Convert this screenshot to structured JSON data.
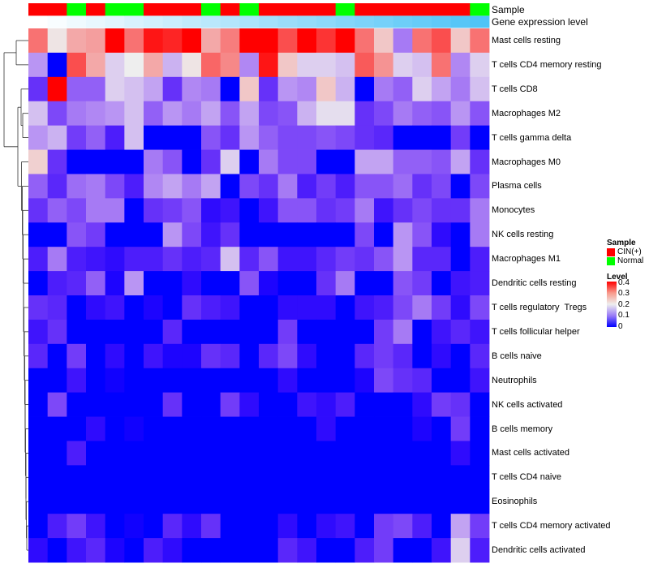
{
  "chart_data": {
    "type": "heatmap",
    "annotations": {
      "sample_label": "Sample",
      "gene_label": "Gene expression level",
      "sample": [
        "CIN(+)",
        "CIN(+)",
        "Normal",
        "CIN(+)",
        "Normal",
        "Normal",
        "CIN(+)",
        "CIN(+)",
        "CIN(+)",
        "Normal",
        "CIN(+)",
        "Normal",
        "CIN(+)",
        "CIN(+)",
        "CIN(+)",
        "CIN(+)",
        "Normal",
        "CIN(+)",
        "CIN(+)",
        "CIN(+)",
        "CIN(+)",
        "CIN(+)",
        "CIN(+)",
        "Normal"
      ],
      "gene_expression_level": [
        0,
        0.04,
        0.09,
        0.13,
        0.17,
        0.22,
        0.26,
        0.3,
        0.35,
        0.39,
        0.43,
        0.48,
        0.52,
        0.57,
        0.61,
        0.65,
        0.7,
        0.74,
        0.78,
        0.83,
        0.87,
        0.91,
        0.96,
        1
      ]
    },
    "rows": [
      "Mast cells resting",
      "T cells CD4 memory resting",
      "T cells CD8",
      "Macrophages M2",
      "T cells gamma delta",
      "Macrophages M0",
      "Plasma cells",
      "Monocytes",
      "NK cells resting",
      "Macrophages M1",
      "Dendritic cells resting",
      "T cells regulatory  Tregs",
      "T cells follicular helper",
      "B cells naive",
      "Neutrophils",
      "NK cells activated",
      "B cells memory",
      "Mast cells activated",
      "T cells CD4 naive",
      "Eosinophils",
      "T cells CD4 memory activated",
      "Dendritic cells activated"
    ],
    "values": [
      [
        0.32,
        0.21,
        0.27,
        0.28,
        0.4,
        0.32,
        0.39,
        0.38,
        0.4,
        0.27,
        0.31,
        0.4,
        0.4,
        0.35,
        0.4,
        0.37,
        0.4,
        0.32,
        0.24,
        0.12,
        0.32,
        0.35,
        0.24,
        0.32
      ],
      [
        0.14,
        0,
        0.35,
        0.27,
        0.18,
        0.2,
        0.27,
        0.16,
        0.21,
        0.33,
        0.3,
        0.13,
        0.39,
        0.24,
        0.18,
        0.18,
        0.17,
        0.34,
        0.29,
        0.18,
        0.17,
        0.32,
        0.13,
        0.18
      ],
      [
        0.06,
        0.4,
        0.1,
        0.1,
        0.18,
        0.17,
        0.15,
        0.06,
        0.13,
        0.12,
        0,
        0.24,
        0.06,
        0.14,
        0.13,
        0.24,
        0.16,
        0,
        0.12,
        0.1,
        0.18,
        0.15,
        0.12,
        0.17
      ],
      [
        0.17,
        0.08,
        0.12,
        0.13,
        0.14,
        0.17,
        0.1,
        0.14,
        0.12,
        0.15,
        0.09,
        0.15,
        0.08,
        0.09,
        0.16,
        0.19,
        0.19,
        0.06,
        0.08,
        0.12,
        0.1,
        0.09,
        0.14,
        0.09
      ],
      [
        0.14,
        0.16,
        0.07,
        0.1,
        0.04,
        0.17,
        0,
        0,
        0,
        0.09,
        0.06,
        0.14,
        0.1,
        0.08,
        0.08,
        0.09,
        0.08,
        0.06,
        0.05,
        0,
        0,
        0,
        0.07,
        0
      ],
      [
        0.23,
        0.06,
        0,
        0,
        0,
        0,
        0.12,
        0.09,
        0,
        0.06,
        0.18,
        0,
        0.12,
        0.08,
        0.08,
        0,
        0,
        0.15,
        0.15,
        0.1,
        0.1,
        0.09,
        0.15,
        0.06
      ],
      [
        0.1,
        0.05,
        0.11,
        0.12,
        0.08,
        0.04,
        0.13,
        0.15,
        0.12,
        0.15,
        0,
        0.08,
        0.06,
        0.12,
        0.04,
        0.07,
        0.04,
        0.09,
        0.09,
        0.11,
        0.06,
        0.08,
        0,
        0.08
      ],
      [
        0.06,
        0.1,
        0.08,
        0.12,
        0.12,
        0,
        0.06,
        0.07,
        0.09,
        0.02,
        0.03,
        0,
        0.03,
        0.09,
        0.09,
        0.06,
        0.07,
        0.12,
        0.03,
        0.06,
        0.08,
        0.06,
        0.06,
        0.12
      ],
      [
        0,
        0,
        0.09,
        0.07,
        0,
        0,
        0,
        0.14,
        0.08,
        0.03,
        0.06,
        0,
        0,
        0,
        0,
        0,
        0,
        0.08,
        0,
        0.14,
        0.09,
        0.02,
        0,
        0.12
      ],
      [
        0.04,
        0.12,
        0.04,
        0.03,
        0.02,
        0.04,
        0.04,
        0.06,
        0.04,
        0.05,
        0.17,
        0.05,
        0.09,
        0.03,
        0.03,
        0.05,
        0.07,
        0.06,
        0.09,
        0.14,
        0.05,
        0.05,
        0,
        0.04
      ],
      [
        0,
        0.04,
        0.05,
        0.1,
        0.01,
        0.14,
        0,
        0,
        0.02,
        0,
        0,
        0.09,
        0.01,
        0,
        0,
        0.06,
        0.12,
        0,
        0,
        0.09,
        0.07,
        0,
        0.03,
        0.04
      ],
      [
        0.06,
        0.05,
        0,
        0.02,
        0.03,
        0,
        0.01,
        0,
        0.06,
        0.04,
        0.03,
        0,
        0,
        0.02,
        0.02,
        0.02,
        0,
        0.03,
        0.04,
        0.08,
        0.12,
        0.07,
        0.02,
        0.08
      ],
      [
        0.03,
        0.06,
        0,
        0,
        0,
        0,
        0,
        0.05,
        0,
        0,
        0,
        0,
        0,
        0.07,
        0,
        0,
        0,
        0,
        0.07,
        0.12,
        0,
        0.03,
        0.05,
        0.03
      ],
      [
        0.05,
        0,
        0.07,
        0,
        0.02,
        0,
        0.03,
        0.01,
        0.01,
        0.06,
        0.05,
        0,
        0.05,
        0.08,
        0.02,
        0,
        0,
        0.05,
        0.07,
        0.05,
        0,
        0.02,
        0,
        0.05
      ],
      [
        0,
        0,
        0.03,
        0,
        0.005,
        0,
        0,
        0,
        0,
        0,
        0,
        0,
        0,
        0.02,
        0,
        0,
        0,
        0.01,
        0.08,
        0.06,
        0.05,
        0,
        0,
        0.03
      ],
      [
        0,
        0.08,
        0,
        0,
        0,
        0,
        0,
        0.06,
        0,
        0,
        0.07,
        0.02,
        0,
        0,
        0.03,
        0.02,
        0.04,
        0,
        0,
        0,
        0.02,
        0.07,
        0.06,
        0
      ],
      [
        0,
        0,
        0,
        0.02,
        0,
        0.005,
        0,
        0,
        0,
        0,
        0,
        0,
        0,
        0,
        0,
        0.02,
        0,
        0,
        0,
        0,
        0.01,
        0,
        0.07,
        0
      ],
      [
        0,
        0,
        0.04,
        0,
        0,
        0,
        0,
        0,
        0,
        0,
        0,
        0,
        0,
        0,
        0,
        0,
        0,
        0,
        0,
        0,
        0,
        0,
        0.02,
        0
      ],
      [
        0,
        0,
        0,
        0,
        0,
        0,
        0,
        0,
        0,
        0,
        0,
        0,
        0,
        0,
        0,
        0,
        0,
        0,
        0,
        0,
        0,
        0,
        0,
        0
      ],
      [
        0,
        0,
        0,
        0,
        0,
        0,
        0,
        0,
        0,
        0,
        0,
        0,
        0,
        0,
        0,
        0,
        0,
        0,
        0,
        0,
        0,
        0,
        0,
        0
      ],
      [
        0,
        0.04,
        0.07,
        0.03,
        0,
        0.005,
        0,
        0.05,
        0.02,
        0.06,
        0,
        0,
        0,
        0.02,
        0,
        0.02,
        0.03,
        0,
        0.07,
        0.08,
        0.04,
        0,
        0.15,
        0.07
      ],
      [
        0.02,
        0,
        0.03,
        0.05,
        0.01,
        0,
        0.04,
        0.02,
        0,
        0,
        0,
        0,
        0,
        0.05,
        0.03,
        0,
        0,
        0.04,
        0.07,
        0,
        0,
        0.03,
        0.18,
        0.04
      ]
    ],
    "colorscale": {
      "min": 0,
      "mid": 0.2,
      "max": 0.4,
      "low": "#0000ff",
      "midcolor": "#eeeeee",
      "high": "#ff0000"
    },
    "sample_colors": {
      "CIN(+)": "#ff0000",
      "Normal": "#00ff00"
    },
    "gene_colors": {
      "low": "#ffffff",
      "high": "#4fc3f7"
    },
    "legend": {
      "sample_title": "Sample",
      "sample_items": [
        "CIN(+)",
        "Normal"
      ],
      "level_title": "Level",
      "level_ticks": [
        "0.4",
        "0.3",
        "0.2",
        "0.1",
        "0"
      ],
      "placement": "right"
    }
  }
}
